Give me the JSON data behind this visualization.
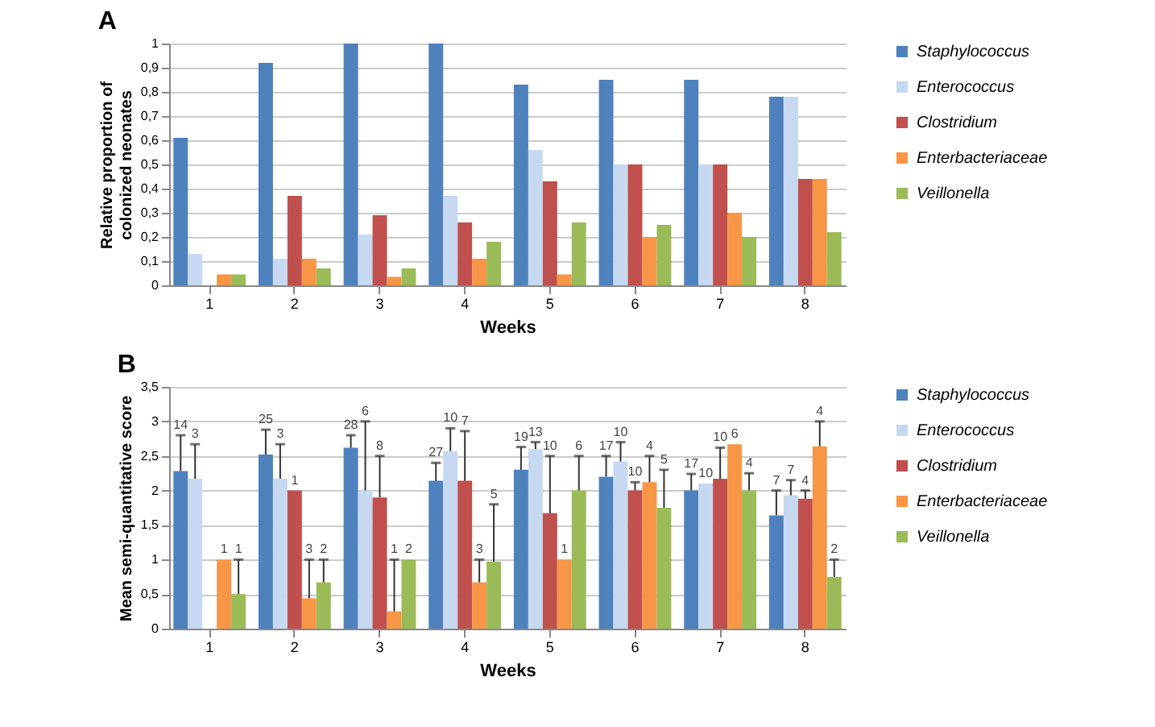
{
  "chart_data": [
    {
      "type": "bar",
      "title": "A",
      "xlabel": "Weeks",
      "ylabel": "Relative proportion of\ncolonized neonates",
      "categories": [
        "1",
        "2",
        "3",
        "4",
        "5",
        "6",
        "7",
        "8"
      ],
      "series": [
        {
          "name": "Staphylococcus",
          "color": "#4f81bd",
          "values": [
            0.61,
            0.92,
            1.0,
            1.0,
            0.83,
            0.85,
            0.85,
            0.78
          ]
        },
        {
          "name": "Enterococcus",
          "color": "#c6d9f1",
          "values": [
            0.13,
            0.11,
            0.21,
            0.37,
            0.56,
            0.5,
            0.5,
            0.78
          ]
        },
        {
          "name": "Clostridium",
          "color": "#c0504d",
          "values": [
            0,
            0.37,
            0.29,
            0.26,
            0.43,
            0.5,
            0.5,
            0.44
          ]
        },
        {
          "name": "Enterbacteriaceae",
          "color": "#f79646",
          "values": [
            0.045,
            0.11,
            0.035,
            0.11,
            0.045,
            0.2,
            0.3,
            0.44
          ]
        },
        {
          "name": "Veillonella",
          "color": "#9bbb59",
          "values": [
            0.045,
            0.07,
            0.07,
            0.18,
            0.26,
            0.25,
            0.2,
            0.22
          ]
        }
      ],
      "ylim": [
        0,
        1
      ],
      "yticks": [
        0,
        {
          "value": 0.1,
          "label": "0,1"
        },
        {
          "value": 0.2,
          "label": "0,2"
        },
        {
          "value": 0.3,
          "label": "0,3"
        },
        {
          "value": 0.4,
          "label": "0,4"
        },
        {
          "value": 0.5,
          "label": "0,5"
        },
        {
          "value": 0.6,
          "label": "0,6"
        },
        {
          "value": 0.7,
          "label": "0,7"
        },
        {
          "value": 0.8,
          "label": "0,8"
        },
        {
          "value": 0.9,
          "label": "0,9"
        },
        1
      ],
      "grid": "y",
      "legend": "right"
    },
    {
      "type": "bar",
      "title": "B",
      "xlabel": "Weeks",
      "ylabel": "Mean semi-quantitative score",
      "categories": [
        "1",
        "2",
        "3",
        "4",
        "5",
        "6",
        "7",
        "8"
      ],
      "series": [
        {
          "name": "Staphylococcus",
          "color": "#4f81bd",
          "values": [
            2.28,
            2.52,
            2.62,
            2.14,
            2.3,
            2.2,
            2.0,
            1.64
          ],
          "errors": [
            [
              2.28,
              2.8
            ],
            [
              2.52,
              2.88
            ],
            [
              2.62,
              2.8
            ],
            [
              2.14,
              2.4
            ],
            [
              2.3,
              2.63
            ],
            [
              2.2,
              2.5
            ],
            [
              2.0,
              2.24
            ],
            [
              1.64,
              2.0
            ]
          ]
        },
        {
          "name": "Enterococcus",
          "color": "#c6d9f1",
          "values": [
            2.17,
            2.17,
            2.0,
            2.57,
            2.6,
            2.42,
            2.1,
            1.93
          ],
          "errors": [
            [
              2.17,
              2.67
            ],
            [
              2.17,
              2.67
            ],
            [
              2.0,
              3.0
            ],
            [
              2.57,
              2.9
            ],
            [
              2.6,
              2.7
            ],
            [
              2.42,
              2.7
            ],
            null,
            [
              1.93,
              2.15
            ]
          ]
        },
        {
          "name": "Clostridium",
          "color": "#c0504d",
          "values": [
            null,
            2.0,
            1.9,
            2.14,
            1.67,
            2.0,
            2.17,
            1.88
          ],
          "errors": [
            null,
            null,
            [
              1.9,
              2.5
            ],
            [
              2.14,
              2.86
            ],
            [
              1.67,
              2.5
            ],
            [
              2.0,
              2.12
            ],
            [
              2.17,
              2.62
            ],
            [
              1.88,
              2.0
            ]
          ]
        },
        {
          "name": "Enterbacteriaceae",
          "color": "#f79646",
          "values": [
            1.0,
            0.44,
            0.25,
            0.67,
            1.0,
            2.12,
            2.67,
            2.64
          ],
          "errors": [
            null,
            [
              0.44,
              1.0
            ],
            [
              0.25,
              1.0
            ],
            [
              0.67,
              1.0
            ],
            null,
            [
              2.12,
              2.5
            ],
            null,
            [
              2.64,
              3.0
            ]
          ]
        },
        {
          "name": "Veillonella",
          "color": "#9bbb59",
          "values": [
            0.5,
            0.67,
            1.0,
            0.97,
            2.0,
            1.75,
            2.0,
            0.75
          ],
          "errors": [
            [
              0.5,
              1.0
            ],
            [
              0.67,
              1.0
            ],
            null,
            [
              0.97,
              1.8
            ],
            [
              2.0,
              2.5
            ],
            [
              1.75,
              2.3
            ],
            [
              2.0,
              2.25
            ],
            [
              0.75,
              1.0
            ]
          ]
        }
      ],
      "annotations": [
        "14",
        "3",
        "1",
        "1",
        "25",
        "3",
        "1",
        "3",
        "2",
        "28",
        "6",
        "8",
        "1",
        "2",
        "27",
        "10",
        "7",
        "3",
        "5",
        "19",
        "13",
        "10",
        "1",
        "6",
        "17",
        "10",
        "10",
        "4",
        "5",
        "17",
        "10",
        "10",
        "6",
        "4",
        "7",
        "7",
        "4",
        "4",
        "2"
      ],
      "ylim": [
        0,
        3.5
      ],
      "yticks": [
        0,
        {
          "value": 0.5,
          "label": "0,5"
        },
        1,
        {
          "value": 1.5,
          "label": "1,5"
        },
        2,
        {
          "value": 2.5,
          "label": "2,5"
        },
        3,
        {
          "value": 3.5,
          "label": "3,5"
        }
      ],
      "grid": "y",
      "legend": "right"
    }
  ]
}
